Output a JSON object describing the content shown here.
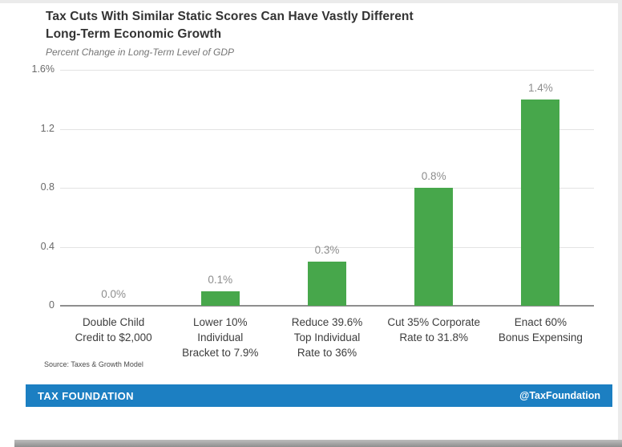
{
  "page": {
    "title_line1": "Tax Cuts With Similar Static Scores Can Have Vastly Different",
    "title_line2": "Long-Term Economic Growth",
    "subtitle": "Percent Change in Long-Term Level of GDP",
    "source": "Source: Taxes & Growth Model"
  },
  "footer": {
    "brand": "TAX FOUNDATION",
    "handle": "@TaxFoundation",
    "bg_color": "#1c7fc2",
    "text_color": "#ffffff"
  },
  "chart_data": {
    "type": "bar",
    "title": "Tax Cuts With Similar Static Scores Can Have Vastly Different Long-Term Economic Growth",
    "subtitle": "Percent Change in Long-Term Level of GDP",
    "categories": [
      "Double Child Credit to $2,000",
      "Lower 10% Individual Bracket to 7.9%",
      "Reduce 39.6% Top Individual Rate to 36%",
      "Cut 35% Corporate Rate to 31.8%",
      "Enact 60% Bonus Expensing"
    ],
    "category_label_lines": [
      [
        "Double Child",
        "Credit to $2,000"
      ],
      [
        "Lower 10%",
        "Individual",
        "Bracket to 7.9%"
      ],
      [
        "Reduce 39.6%",
        "Top Individual",
        "Rate to 36%"
      ],
      [
        "Cut 35% Corporate",
        "Rate to 31.8%"
      ],
      [
        "Enact 60%",
        "Bonus Expensing"
      ]
    ],
    "values": [
      0.0,
      0.1,
      0.3,
      0.8,
      1.4
    ],
    "value_labels": [
      "0.0%",
      "0.1%",
      "0.3%",
      "0.8%",
      "1.4%"
    ],
    "ylabel": "",
    "xlabel": "",
    "ylim": [
      0,
      1.6
    ],
    "ytick_values": [
      1.6,
      1.2,
      0.8,
      0.4,
      0
    ],
    "ytick_labels": [
      "1.6%",
      "1.2",
      "0.8",
      "0.4",
      "0"
    ],
    "grid": true,
    "legend": false,
    "bar_color": "#47a74b"
  }
}
